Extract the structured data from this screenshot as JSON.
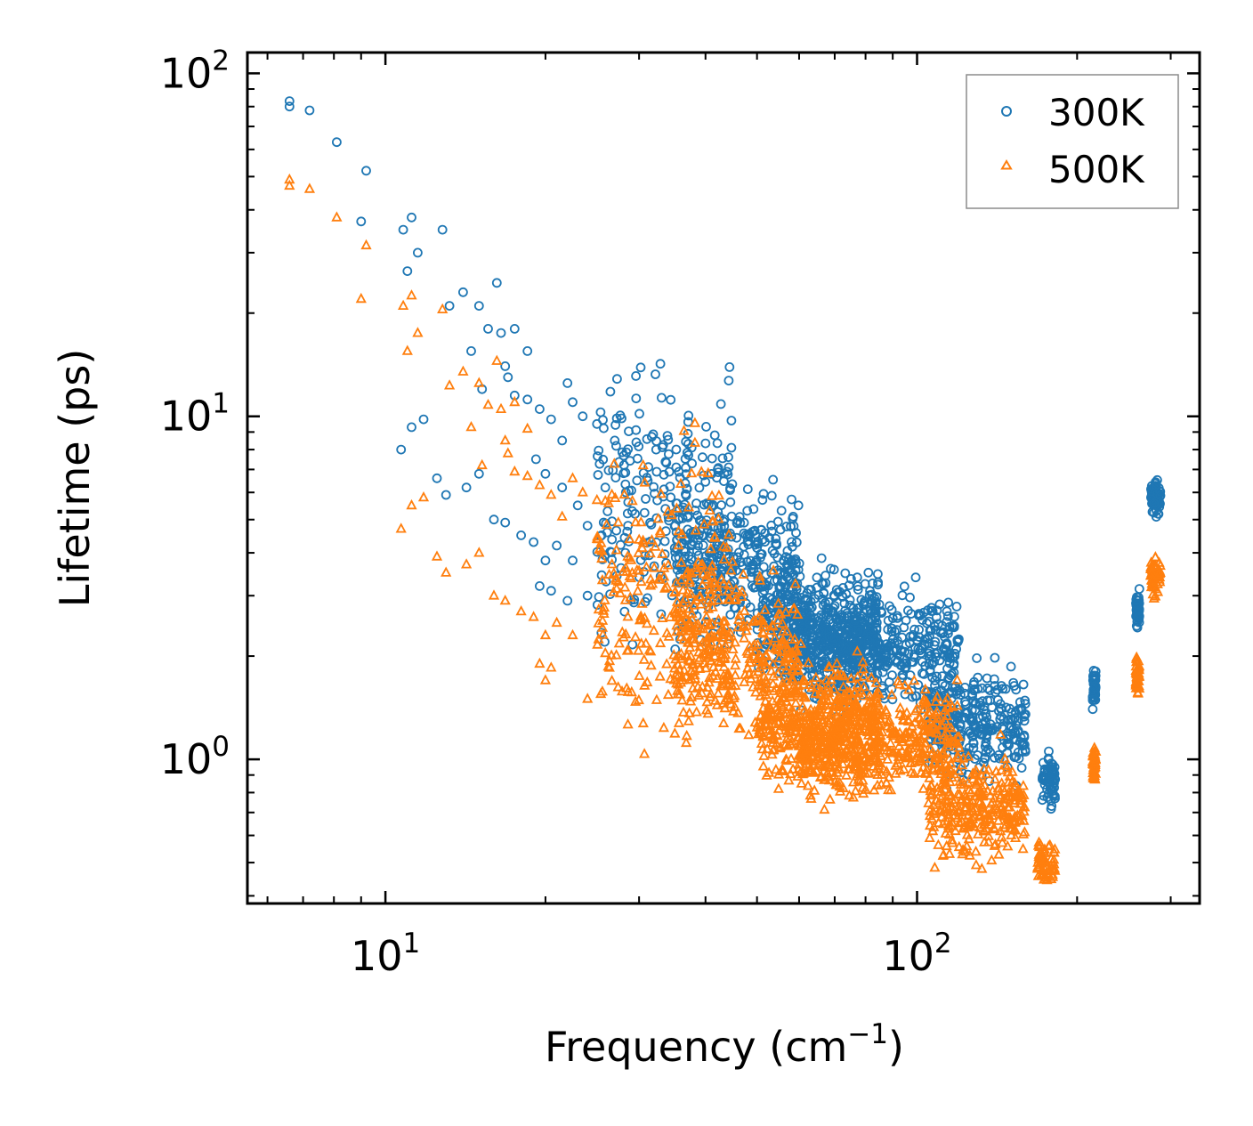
{
  "chart_data": {
    "type": "scatter",
    "xscale": "log",
    "yscale": "log",
    "xlim": [
      5.5,
      340
    ],
    "ylim": [
      0.38,
      115
    ],
    "xlabel": "Frequency (cm",
    "xlabel_sup": "−1",
    "xlabel_end": ")",
    "ylabel": "Lifetime (ps)",
    "x_ticks": [
      {
        "value": 10,
        "base": "10",
        "exp": "1"
      },
      {
        "value": 100,
        "base": "10",
        "exp": "2"
      }
    ],
    "y_ticks": [
      {
        "value": 1,
        "base": "10",
        "exp": "0"
      },
      {
        "value": 10,
        "base": "10",
        "exp": "1"
      },
      {
        "value": 100,
        "base": "10",
        "exp": "2"
      }
    ],
    "legend_position": "top-right",
    "series": [
      {
        "name": "300K",
        "marker": "circle",
        "color": "#1f77b4",
        "points": [
          [
            6.6,
            83
          ],
          [
            6.6,
            80
          ],
          [
            7.2,
            78
          ],
          [
            8.1,
            63
          ],
          [
            9.2,
            52
          ],
          [
            9.0,
            37
          ],
          [
            10.8,
            35
          ],
          [
            11.2,
            38
          ],
          [
            11.5,
            30
          ],
          [
            11.0,
            26.5
          ],
          [
            12.8,
            35
          ],
          [
            13.2,
            21
          ],
          [
            14.0,
            23
          ],
          [
            15.0,
            21
          ],
          [
            15.6,
            18
          ],
          [
            16.2,
            24.5
          ],
          [
            16.5,
            17.5
          ],
          [
            17.5,
            18
          ],
          [
            18.5,
            15.5
          ],
          [
            16.8,
            14
          ],
          [
            14.5,
            15.5
          ],
          [
            15.2,
            12
          ],
          [
            17.0,
            13
          ],
          [
            10.7,
            8
          ],
          [
            11.2,
            9.3
          ],
          [
            11.8,
            9.8
          ],
          [
            12.5,
            6.6
          ],
          [
            13.0,
            5.9
          ],
          [
            14.2,
            6.2
          ],
          [
            15.0,
            6.8
          ],
          [
            16.0,
            5.0
          ],
          [
            16.8,
            4.9
          ],
          [
            18.0,
            4.5
          ],
          [
            19.0,
            4.3
          ],
          [
            20.0,
            3.8
          ],
          [
            19.5,
            3.2
          ],
          [
            20.5,
            3.1
          ],
          [
            17.5,
            11.5
          ],
          [
            18.5,
            11.2
          ],
          [
            19.5,
            10.5
          ],
          [
            20.5,
            9.8
          ],
          [
            21.5,
            8.5
          ],
          [
            22.5,
            11
          ],
          [
            23.5,
            10
          ],
          [
            25.0,
            9.5
          ],
          [
            26.5,
            11.8
          ],
          [
            27.0,
            8.5
          ],
          [
            22.0,
            12.5
          ],
          [
            19.2,
            7.5
          ],
          [
            20.0,
            6.8
          ],
          [
            21.5,
            6.2
          ],
          [
            23.0,
            5.5
          ],
          [
            24.0,
            4.8
          ],
          [
            21.0,
            4.2
          ],
          [
            25.5,
            4.5
          ],
          [
            22.5,
            3.8
          ],
          [
            26.0,
            3.3
          ],
          [
            24.0,
            3.0
          ],
          [
            22.0,
            2.9
          ]
        ],
        "clusters": [
          {
            "x_range": [
              25,
              45
            ],
            "y_center": 5.5,
            "y_spread": 0.35,
            "count": 260
          },
          {
            "x_range": [
              35,
              60
            ],
            "y_center": 3.6,
            "y_spread": 0.22,
            "count": 320
          },
          {
            "x_range": [
              50,
              85
            ],
            "y_center": 2.45,
            "y_spread": 0.16,
            "count": 420
          },
          {
            "x_range": [
              60,
              120
            ],
            "y_center": 2.1,
            "y_spread": 0.15,
            "count": 480
          },
          {
            "x_range": [
              105,
              160
            ],
            "y_center": 1.25,
            "y_spread": 0.14,
            "count": 300
          },
          {
            "x_range": [
              172,
              182
            ],
            "y_center": 0.88,
            "y_spread": 0.07,
            "count": 60
          },
          {
            "x_range": [
              214,
              217
            ],
            "y_center": 1.6,
            "y_spread": 0.06,
            "count": 45
          },
          {
            "x_range": [
              258,
              262
            ],
            "y_center": 2.75,
            "y_spread": 0.05,
            "count": 45
          },
          {
            "x_range": [
              275,
              287
            ],
            "y_center": 5.8,
            "y_spread": 0.05,
            "count": 70
          }
        ]
      },
      {
        "name": "500K",
        "marker": "triangle",
        "color": "#ff7f0e",
        "points": [
          [
            6.6,
            49
          ],
          [
            6.6,
            47
          ],
          [
            7.2,
            46
          ],
          [
            8.1,
            38
          ],
          [
            9.2,
            31.5
          ],
          [
            9.0,
            22
          ],
          [
            10.8,
            21
          ],
          [
            11.2,
            22.5
          ],
          [
            11.5,
            17.5
          ],
          [
            11.0,
            15.5
          ],
          [
            12.8,
            20.5
          ],
          [
            13.2,
            12.3
          ],
          [
            14.0,
            13.5
          ],
          [
            15.0,
            12.5
          ],
          [
            15.6,
            10.8
          ],
          [
            16.2,
            14.5
          ],
          [
            16.5,
            10.5
          ],
          [
            17.5,
            11
          ],
          [
            18.5,
            9.2
          ],
          [
            16.8,
            8.5
          ],
          [
            14.5,
            9.3
          ],
          [
            15.2,
            7.2
          ],
          [
            17.0,
            7.8
          ],
          [
            10.7,
            4.7
          ],
          [
            11.2,
            5.5
          ],
          [
            11.8,
            5.8
          ],
          [
            12.5,
            3.9
          ],
          [
            13.0,
            3.5
          ],
          [
            14.2,
            3.7
          ],
          [
            15.0,
            4.0
          ],
          [
            16.0,
            3.0
          ],
          [
            16.8,
            2.9
          ],
          [
            18.0,
            2.7
          ],
          [
            19.0,
            2.6
          ],
          [
            20.0,
            2.3
          ],
          [
            19.5,
            1.9
          ],
          [
            20.5,
            1.85
          ],
          [
            17.5,
            6.9
          ],
          [
            18.5,
            6.7
          ],
          [
            19.5,
            6.3
          ],
          [
            20.5,
            5.9
          ],
          [
            21.5,
            5.1
          ],
          [
            22.5,
            6.6
          ],
          [
            23.5,
            6.0
          ],
          [
            25.0,
            5.7
          ],
          [
            21.0,
            2.5
          ],
          [
            22.5,
            2.3
          ],
          [
            24.0,
            1.5
          ],
          [
            20.0,
            1.7
          ]
        ],
        "clusters": [
          {
            "x_range": [
              25,
              45
            ],
            "y_center": 3.0,
            "y_spread": 0.35,
            "count": 260
          },
          {
            "x_range": [
              35,
              60
            ],
            "y_center": 2.0,
            "y_spread": 0.22,
            "count": 320
          },
          {
            "x_range": [
              50,
              85
            ],
            "y_center": 1.25,
            "y_spread": 0.16,
            "count": 420
          },
          {
            "x_range": [
              60,
              120
            ],
            "y_center": 1.15,
            "y_spread": 0.15,
            "count": 480
          },
          {
            "x_range": [
              105,
              160
            ],
            "y_center": 0.72,
            "y_spread": 0.14,
            "count": 300
          },
          {
            "x_range": [
              168,
              182
            ],
            "y_center": 0.5,
            "y_spread": 0.06,
            "count": 60
          },
          {
            "x_range": [
              214,
              217
            ],
            "y_center": 0.95,
            "y_spread": 0.06,
            "count": 45
          },
          {
            "x_range": [
              258,
              262
            ],
            "y_center": 1.75,
            "y_spread": 0.05,
            "count": 45
          },
          {
            "x_range": [
              275,
              287
            ],
            "y_center": 3.4,
            "y_spread": 0.05,
            "count": 70
          }
        ]
      }
    ]
  }
}
